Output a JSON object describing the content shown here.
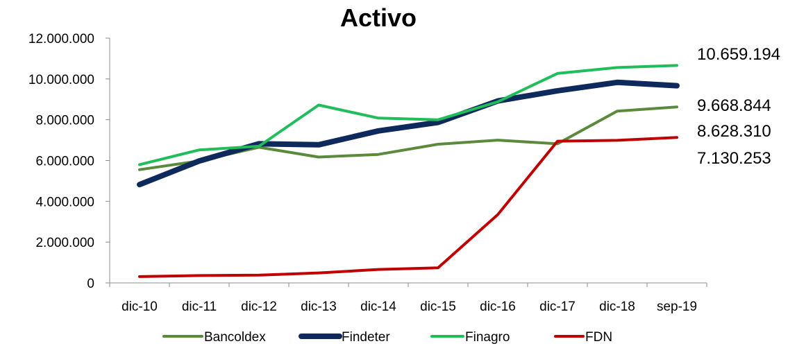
{
  "chart_data": {
    "type": "line",
    "title": "Activo",
    "xlabel": "",
    "ylabel": "",
    "categories": [
      "dic-10",
      "dic-11",
      "dic-12",
      "dic-13",
      "dic-14",
      "dic-15",
      "dic-16",
      "dic-17",
      "dic-18",
      "sep-19"
    ],
    "ylim": [
      0,
      12000000
    ],
    "yticks": [
      0,
      2000000,
      4000000,
      6000000,
      8000000,
      10000000,
      12000000
    ],
    "ytick_labels": [
      "0",
      "2.000.000",
      "4.000.000",
      "6.000.000",
      "8.000.000",
      "10.000.000",
      "12.000.000"
    ],
    "grid": false,
    "legend_position": "bottom",
    "series": [
      {
        "name": "Bancoldex",
        "color": "#5b8a3c",
        "width": 4,
        "values": [
          5550000,
          5980000,
          6650000,
          6170000,
          6300000,
          6800000,
          7000000,
          6820000,
          8420000,
          8628310
        ]
      },
      {
        "name": "Findeter",
        "color": "#0e2a5c",
        "width": 8,
        "values": [
          4820000,
          5980000,
          6820000,
          6770000,
          7450000,
          7870000,
          8920000,
          9420000,
          9830000,
          9668844
        ]
      },
      {
        "name": "Finagro",
        "color": "#20bd5a",
        "width": 4,
        "values": [
          5800000,
          6520000,
          6700000,
          8720000,
          8080000,
          8000000,
          8880000,
          10270000,
          10560000,
          10659194
        ]
      },
      {
        "name": "FDN",
        "color": "#c00000",
        "width": 4,
        "values": [
          310000,
          360000,
          380000,
          490000,
          660000,
          740000,
          3350000,
          6950000,
          6990000,
          7130253
        ]
      }
    ],
    "end_labels": [
      {
        "series": "Finagro",
        "text": "10.659.194"
      },
      {
        "series": "Findeter",
        "text": "9.668.844"
      },
      {
        "series": "Bancoldex",
        "text": "8.628.310"
      },
      {
        "series": "FDN",
        "text": "7.130.253"
      }
    ]
  }
}
